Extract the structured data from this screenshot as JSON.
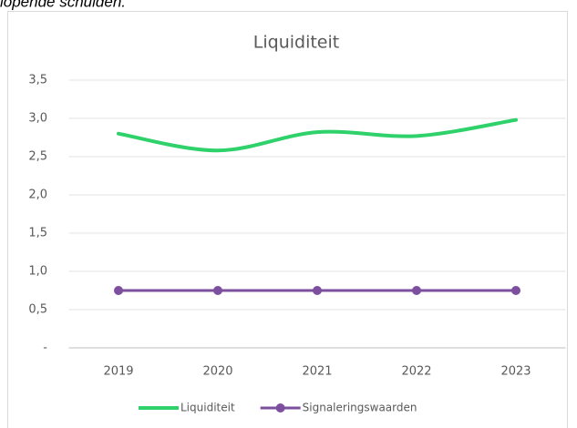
{
  "page_text": "lopende schulden.",
  "chart_data": {
    "type": "line",
    "title": "Liquiditeit",
    "categories": [
      "2019",
      "2020",
      "2021",
      "2022",
      "2023"
    ],
    "series": [
      {
        "name": "Liquiditeit",
        "color": "#2fd16b",
        "values": [
          2.8,
          2.58,
          2.82,
          2.77,
          2.98
        ],
        "smooth": true,
        "markers": false
      },
      {
        "name": "Signaleringswaarden",
        "color": "#7d4f9f",
        "values": [
          0.75,
          0.75,
          0.75,
          0.75,
          0.75
        ],
        "smooth": false,
        "markers": true
      }
    ],
    "ylim": [
      0,
      3.5
    ],
    "yticks": [
      {
        "value": 0,
        "label": "-"
      },
      {
        "value": 0.5,
        "label": "0,5"
      },
      {
        "value": 1,
        "label": "1,0"
      },
      {
        "value": 1.5,
        "label": "1,5"
      },
      {
        "value": 2,
        "label": "2,0"
      },
      {
        "value": 2.5,
        "label": "2,5"
      },
      {
        "value": 3,
        "label": "3,0"
      },
      {
        "value": 3.5,
        "label": "3,5"
      }
    ],
    "grid": true,
    "legend": "bottom"
  }
}
